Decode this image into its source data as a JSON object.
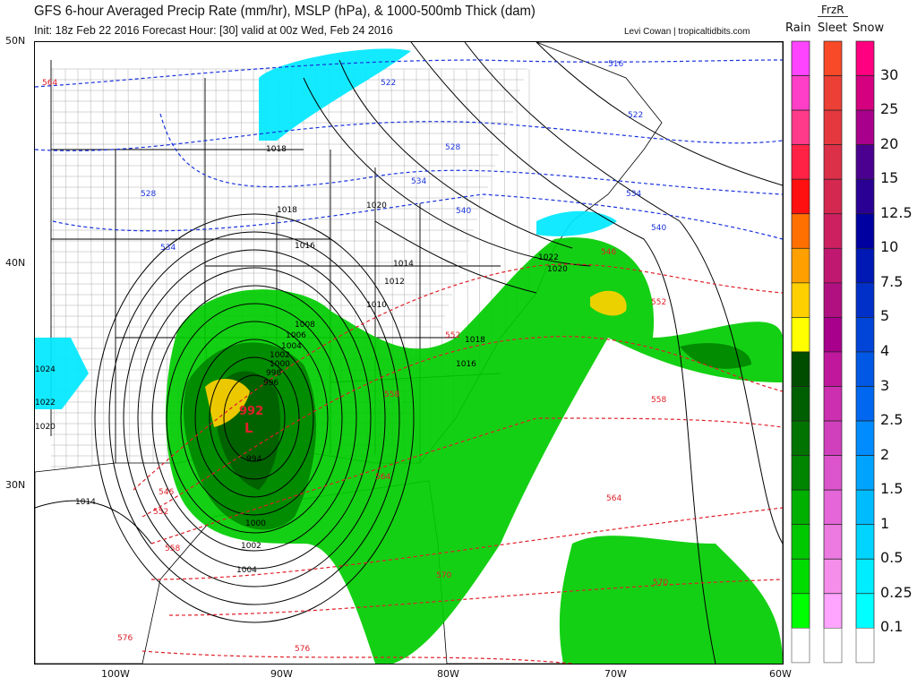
{
  "header": {
    "title": "GFS 6-hour Averaged Precip Rate (mm/hr), MSLP (hPa), & 1000-500mb Thick (dam)",
    "subtitle": "Init: 18z Feb 22 2016   Forecast Hour: [30]   valid at 00z Wed, Feb 24 2016",
    "credit": "Levi Cowan | tropicaltidbits.com"
  },
  "legend": {
    "columns": [
      "Rain",
      "Sleet",
      "Snow"
    ],
    "frzr_label": "FrzR",
    "labels": [
      "30",
      "25",
      "20",
      "15",
      "12.5",
      "10",
      "7.5",
      "5",
      "4",
      "3",
      "2.5",
      "2",
      "1.5",
      "1",
      "0.5",
      "0.25",
      "0.1"
    ],
    "rain_colors": [
      "#ff44ff",
      "#ff3ec8",
      "#ff3a8a",
      "#ff2244",
      "#ff1010",
      "#ff7000",
      "#ffa000",
      "#ffd000",
      "#ffff00",
      "#004d00",
      "#005f00",
      "#007300",
      "#008500",
      "#00b000",
      "#00c800",
      "#00dc00",
      "#00ff00",
      "#ffffff"
    ],
    "sleet_colors": [
      "#f84a28",
      "#ec3f36",
      "#e4383e",
      "#dc3048",
      "#d42850",
      "#cc2060",
      "#c01870",
      "#b01080",
      "#a8008c",
      "#c0189c",
      "#cc30b0",
      "#d040bc",
      "#dc54cc",
      "#e466d8",
      "#ec7ae0",
      "#f48eea",
      "#ffa4ff",
      "#ffffff"
    ],
    "snow_colors": [
      "#ff0080",
      "#d4007f",
      "#a8008c",
      "#4b0090",
      "#2a0094",
      "#0000a0",
      "#0018b4",
      "#0030c8",
      "#0044d8",
      "#0058e4",
      "#0068f0",
      "#008cff",
      "#00a4ff",
      "#00bcff",
      "#00d4ff",
      "#00ecff",
      "#00ffff",
      "#ffffff"
    ]
  },
  "map": {
    "lat_labels": [
      "50N",
      "40N",
      "30N"
    ],
    "lon_labels": [
      "100W",
      "90W",
      "80W",
      "70W",
      "60W"
    ],
    "low_pressure": {
      "value": "992",
      "symbol": "L"
    },
    "isobar_labels": [
      "1018",
      "1018",
      "1020",
      "1016",
      "1014",
      "1012",
      "1010",
      "1008",
      "1006",
      "1004",
      "1002",
      "1000",
      "998",
      "996",
      "994",
      "1000",
      "1002",
      "1004",
      "1014",
      "1024",
      "1022",
      "1020",
      "1022",
      "1020",
      "1018",
      "1016"
    ],
    "thickness_blue_labels": [
      "516",
      "522",
      "522",
      "528",
      "528",
      "534",
      "534",
      "540",
      "540",
      "534"
    ],
    "thickness_red_labels": [
      "546",
      "552",
      "552",
      "558",
      "558",
      "564",
      "564",
      "570",
      "570",
      "576",
      "576",
      "546",
      "552",
      "558",
      "564"
    ],
    "colors": {
      "isobar": "#000000",
      "thickness_cold": "#1a33dd",
      "thickness_warm": "#e0202a",
      "rain": "#00c800",
      "snow": "#00e8ff",
      "heavy": "#ffd000"
    }
  }
}
